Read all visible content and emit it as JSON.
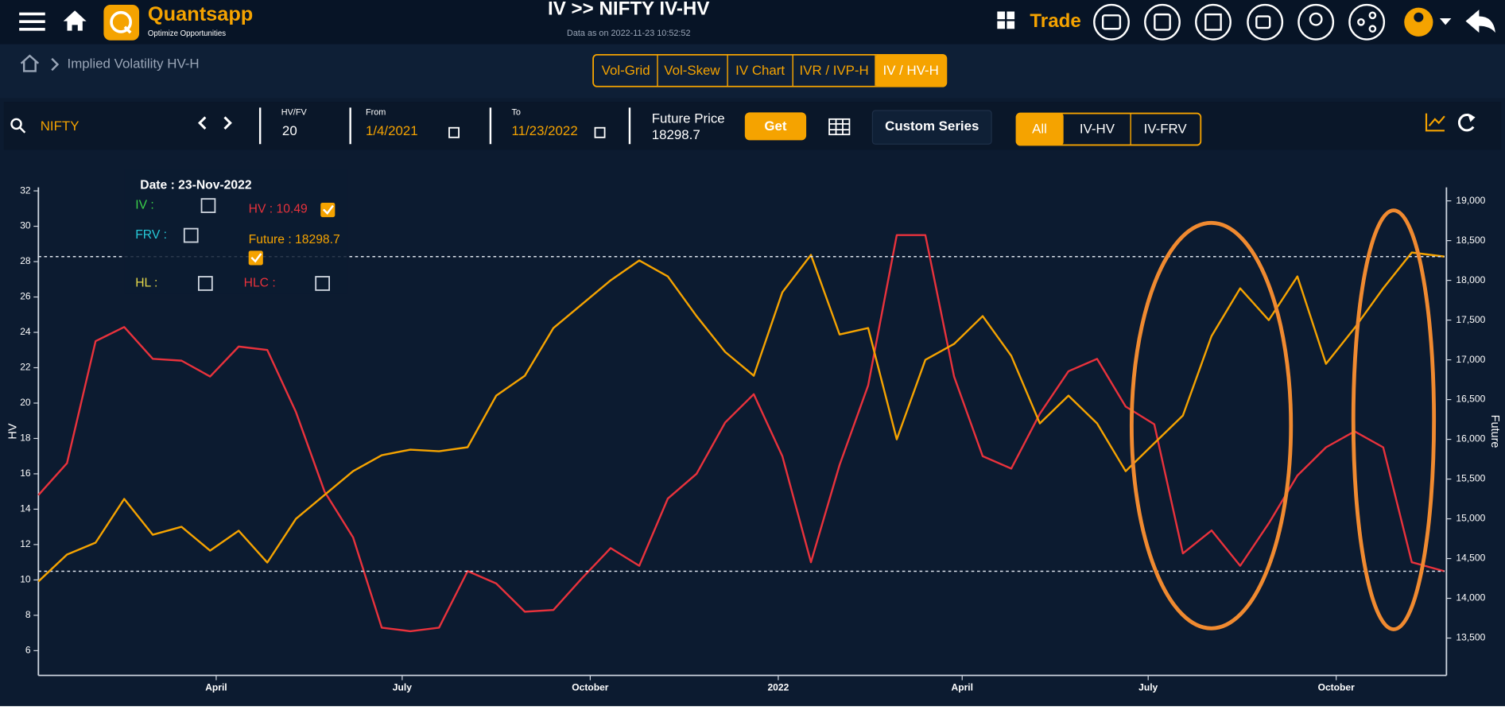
{
  "header": {
    "brand": "Quantsapp",
    "tagline": "Optimize Opportunities",
    "title": "IV >> NIFTY IV-HV",
    "subtitle": "Data as on 2022-11-23 10:52:52",
    "trade": "Trade"
  },
  "breadcrumb": "Implied Volatility HV-H",
  "tabs": [
    "Vol-Grid",
    "Vol-Skew",
    "IV Chart",
    "IVR / IVP-H",
    "IV / HV-H"
  ],
  "controls": {
    "symbol": "NIFTY",
    "hvfv_label": "HV/FV",
    "hvfv": "20",
    "from_label": "From",
    "from": "1/4/2021",
    "to_label": "To",
    "to": "11/23/2022",
    "future_label": "Future Price",
    "future": "18298.7",
    "get": "Get",
    "custom": "Custom Series",
    "filters": [
      "All",
      "IV-HV",
      "IV-FRV"
    ]
  },
  "tooltip": {
    "date": "Date : 23-Nov-2022",
    "iv": "IV :",
    "frv": "FRV :",
    "hv": "HV : 10.49",
    "future": "Future : 18298.7",
    "hl": "HL :",
    "hlc": "HLC :"
  },
  "chart_data": {
    "type": "line",
    "ylabel": "HV",
    "y2label": "Future",
    "x": [
      "2021-01-04",
      "2021-01-18",
      "2021-02-01",
      "2021-02-15",
      "2021-03-01",
      "2021-03-15",
      "2021-03-29",
      "2021-04-12",
      "2021-04-26",
      "2021-05-10",
      "2021-05-24",
      "2021-06-07",
      "2021-06-21",
      "2021-07-05",
      "2021-07-19",
      "2021-08-02",
      "2021-08-16",
      "2021-08-30",
      "2021-09-13",
      "2021-09-27",
      "2021-10-11",
      "2021-10-25",
      "2021-11-08",
      "2021-11-22",
      "2021-12-06",
      "2021-12-20",
      "2022-01-03",
      "2022-01-17",
      "2022-01-31",
      "2022-02-14",
      "2022-02-28",
      "2022-03-14",
      "2022-03-28",
      "2022-04-11",
      "2022-04-25",
      "2022-05-09",
      "2022-05-23",
      "2022-06-06",
      "2022-06-20",
      "2022-07-04",
      "2022-07-18",
      "2022-08-01",
      "2022-08-15",
      "2022-08-29",
      "2022-09-12",
      "2022-09-26",
      "2022-10-10",
      "2022-10-24",
      "2022-11-07",
      "2022-11-23"
    ],
    "series": [
      {
        "color": "#e8323c",
        "axis": "y",
        "values": [
          14.8,
          16.6,
          23.5,
          24.3,
          22.5,
          22.4,
          21.5,
          23.2,
          23.0,
          19.5,
          15.0,
          12.4,
          7.3,
          7.1,
          7.3,
          10.5,
          9.8,
          8.2,
          8.3,
          10.1,
          11.8,
          10.8,
          14.6,
          16.0,
          18.9,
          20.5,
          17.0,
          11.0,
          16.5,
          21.0,
          29.5,
          29.5,
          21.5,
          17.0,
          16.3,
          19.4,
          21.8,
          22.5,
          19.8,
          18.8,
          11.5,
          12.8,
          10.8,
          13.2,
          15.9,
          17.5,
          18.4,
          17.5,
          11.0,
          10.49
        ]
      },
      {
        "color": "#f5a300",
        "axis": "y2",
        "values": [
          14212,
          14550,
          14700,
          15250,
          14800,
          14900,
          14600,
          14850,
          14450,
          15000,
          15300,
          15600,
          15800,
          15870,
          15850,
          15900,
          16550,
          16800,
          17400,
          17700,
          18000,
          18250,
          18050,
          17550,
          17100,
          16800,
          17850,
          18320,
          17320,
          17400,
          16000,
          17000,
          17200,
          17550,
          17050,
          16200,
          16550,
          16200,
          15600,
          15950,
          16300,
          17300,
          17900,
          17500,
          18050,
          16950,
          17400,
          17900,
          18350,
          18298.7
        ]
      }
    ],
    "xlim": [
      "2021-01-04",
      "2022-11-23"
    ],
    "xticks": [
      {
        "value": "2021-04-01",
        "label": "April"
      },
      {
        "value": "2021-07-01",
        "label": "July"
      },
      {
        "value": "2021-10-01",
        "label": "October"
      },
      {
        "value": "2022-01-01",
        "label": "2022"
      },
      {
        "value": "2022-04-01",
        "label": "April"
      },
      {
        "value": "2022-07-01",
        "label": "July"
      },
      {
        "value": "2022-10-01",
        "label": "October"
      }
    ],
    "ylim": [
      4.6,
      32.2
    ],
    "yticks": [
      6,
      8,
      10,
      12,
      14,
      16,
      18,
      20,
      22,
      24,
      26,
      28,
      30,
      32
    ],
    "y2lim": [
      13030,
      19170
    ],
    "y2ticks": [
      {
        "value": 13500,
        "label": "13,500"
      },
      {
        "value": 14000,
        "label": "14,000"
      },
      {
        "value": 14500,
        "label": "14,500"
      },
      {
        "value": 15000,
        "label": "15,000"
      },
      {
        "value": 15500,
        "label": "15,500"
      },
      {
        "value": 16000,
        "label": "16,000"
      },
      {
        "value": 16500,
        "label": "16,500"
      },
      {
        "value": 17000,
        "label": "17,000"
      },
      {
        "value": 17500,
        "label": "17,500"
      },
      {
        "value": 18000,
        "label": "18,000"
      },
      {
        "value": 18500,
        "label": "18,500"
      },
      {
        "value": 19000,
        "label": "19,000"
      }
    ]
  }
}
